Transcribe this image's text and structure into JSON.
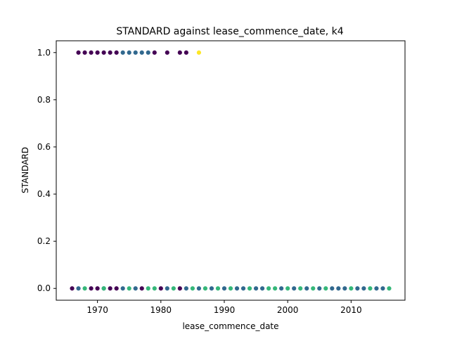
{
  "chart_data": {
    "type": "scatter",
    "title": "STANDARD against lease_commence_date, k4",
    "xlabel": "lease_commence_date",
    "ylabel": "STANDARD",
    "xlim": [
      1963.5,
      2018.5
    ],
    "ylim": [
      -0.05,
      1.05
    ],
    "xticks": [
      1970,
      1980,
      1990,
      2000,
      2010
    ],
    "yticks": [
      0.0,
      0.2,
      0.4,
      0.6,
      0.8,
      1.0
    ],
    "ytick_labels": [
      "0.0",
      "0.2",
      "0.4",
      "0.6",
      "0.8",
      "1.0"
    ],
    "grid": false,
    "legend": "none",
    "colormap": "viridis",
    "cluster_colors": {
      "k0": "#440154",
      "k1": "#31688e",
      "k2": "#35b779",
      "k3": "#fde725"
    },
    "series": [
      {
        "color": "#440154",
        "points": [
          [
            1967,
            1
          ],
          [
            1968,
            1
          ],
          [
            1969,
            1
          ],
          [
            1970,
            1
          ],
          [
            1971,
            1
          ],
          [
            1972,
            1
          ],
          [
            1973,
            1
          ],
          [
            1979,
            1
          ],
          [
            1981,
            1
          ],
          [
            1983,
            1
          ],
          [
            1984,
            1
          ],
          [
            1966,
            0
          ],
          [
            1969,
            0
          ],
          [
            1970,
            0
          ],
          [
            1972,
            0
          ],
          [
            1973,
            0
          ],
          [
            1977,
            0
          ],
          [
            1980,
            0
          ],
          [
            1983,
            0
          ]
        ]
      },
      {
        "color": "#31688e",
        "points": [
          [
            1974,
            1
          ],
          [
            1975,
            1
          ],
          [
            1976,
            1
          ],
          [
            1977,
            1
          ],
          [
            1978,
            1
          ],
          [
            1967,
            0
          ],
          [
            1971,
            0
          ],
          [
            1974,
            0
          ],
          [
            1976,
            0
          ],
          [
            1981,
            0
          ],
          [
            1984,
            0
          ],
          [
            1986,
            0
          ],
          [
            1988,
            0
          ],
          [
            1990,
            0
          ],
          [
            1992,
            0
          ],
          [
            1993,
            0
          ],
          [
            1995,
            0
          ],
          [
            1996,
            0
          ],
          [
            1999,
            0
          ],
          [
            2001,
            0
          ],
          [
            2003,
            0
          ],
          [
            2005,
            0
          ],
          [
            2007,
            0
          ],
          [
            2008,
            0
          ],
          [
            2009,
            0
          ],
          [
            2011,
            0
          ],
          [
            2012,
            0
          ],
          [
            2014,
            0
          ],
          [
            2015,
            0
          ]
        ]
      },
      {
        "color": "#35b779",
        "points": [
          [
            1968,
            0
          ],
          [
            1971,
            0
          ],
          [
            1975,
            0
          ],
          [
            1978,
            0
          ],
          [
            1979,
            0
          ],
          [
            1982,
            0
          ],
          [
            1985,
            0
          ],
          [
            1987,
            0
          ],
          [
            1989,
            0
          ],
          [
            1991,
            0
          ],
          [
            1994,
            0
          ],
          [
            1997,
            0
          ],
          [
            1998,
            0
          ],
          [
            2000,
            0
          ],
          [
            2002,
            0
          ],
          [
            2004,
            0
          ],
          [
            2006,
            0
          ],
          [
            2010,
            0
          ],
          [
            2013,
            0
          ],
          [
            2016,
            0
          ]
        ]
      },
      {
        "color": "#fde725",
        "points": [
          [
            1986,
            1
          ]
        ]
      }
    ]
  }
}
